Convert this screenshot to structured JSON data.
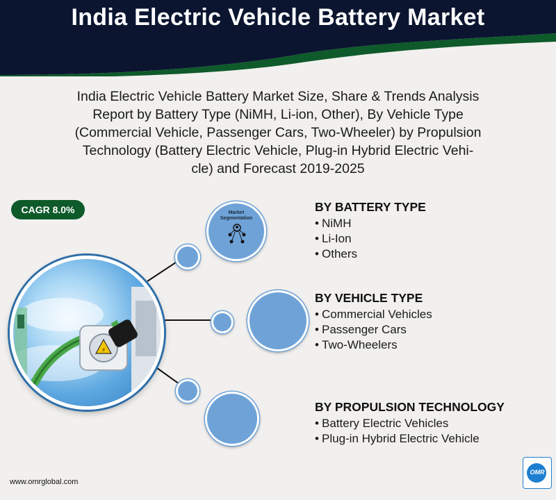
{
  "header": {
    "title": "India Electric Vehicle Battery Market",
    "bg_color": "#0b1530",
    "accent_color": "#0e5a2a"
  },
  "subtitle": {
    "line1": "India Electric Vehicle Battery Market Size, Share & Trends Analysis",
    "line2": "Report by Battery Type (NiMH, Li-ion, Other), By Vehicle Type",
    "line3": "(Commercial Vehicle, Passenger Cars, Two-Wheeler) by Propulsion",
    "line4": "Technology (Battery Electric Vehicle, Plug-in Hybrid Electric Vehi-",
    "line5": "cle) and Forecast 2019-2025"
  },
  "cagr_badge": "CAGR 8.0%",
  "segmentation": {
    "label_line1": "Market",
    "label_line2": "Segmentation"
  },
  "sections": [
    {
      "heading": "BY BATTERY TYPE",
      "items": [
        "NiMH",
        "Li-Ion",
        "Others"
      ]
    },
    {
      "heading": "BY VEHICLE TYPE",
      "items": [
        "Commercial Vehicles",
        "Passenger Cars",
        "Two-Wheelers"
      ]
    },
    {
      "heading": "BY PROPULSION TECHNOLOGY",
      "items": [
        "Battery Electric Vehicles",
        "Plug-in Hybrid Electric Vehicle"
      ]
    }
  ],
  "bullet": "•",
  "footer_url": "www.omrglobal.com",
  "logo_text": "OMR",
  "circle_color": "#6fa3d8",
  "icons": [
    "people-network-icon",
    "ev-charging-hero-image",
    "omr-logo"
  ]
}
